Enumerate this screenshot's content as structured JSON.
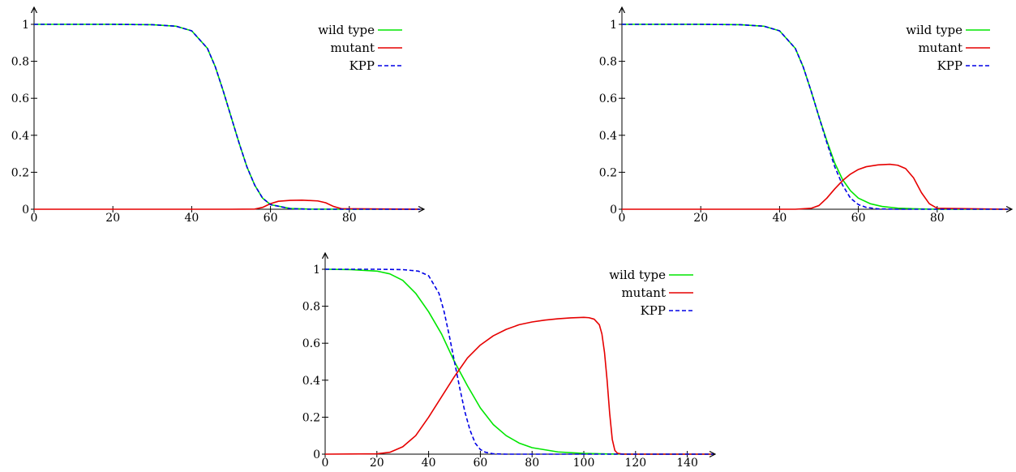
{
  "chart_data": [
    {
      "type": "line",
      "title": "",
      "xlabel": "",
      "ylabel": "",
      "xlim": [
        0,
        98
      ],
      "ylim": [
        0,
        1.03
      ],
      "x_ticks": [
        "0",
        "20",
        "40",
        "60",
        "80"
      ],
      "y_ticks": [
        "0",
        "0.2",
        "0.4",
        "0.6",
        "0.8",
        "1"
      ],
      "grid": false,
      "legend_position": "top-right",
      "series": [
        {
          "name": "wild type",
          "color": "#00e600",
          "dash": "solid",
          "x": [
            0,
            20,
            30,
            36,
            40,
            44,
            46,
            48,
            50,
            52,
            54,
            56,
            58,
            60,
            65,
            70,
            80,
            98
          ],
          "y": [
            1,
            1,
            0.998,
            0.99,
            0.965,
            0.87,
            0.77,
            0.64,
            0.5,
            0.36,
            0.23,
            0.13,
            0.06,
            0.025,
            0.004,
            0.001,
            0,
            0
          ]
        },
        {
          "name": "mutant",
          "color": "#e60000",
          "dash": "solid",
          "x": [
            0,
            50,
            56,
            58,
            60,
            62,
            65,
            68,
            72,
            74,
            76,
            78,
            98
          ],
          "y": [
            0,
            0,
            0.001,
            0.01,
            0.03,
            0.043,
            0.048,
            0.049,
            0.045,
            0.035,
            0.015,
            0.003,
            0
          ]
        },
        {
          "name": "KPP",
          "color": "#0000e6",
          "dash": "dashed",
          "x": [
            0,
            20,
            30,
            36,
            40,
            44,
            46,
            48,
            50,
            52,
            54,
            56,
            58,
            60,
            65,
            70,
            80,
            98
          ],
          "y": [
            1,
            1,
            0.998,
            0.99,
            0.965,
            0.87,
            0.77,
            0.64,
            0.5,
            0.36,
            0.23,
            0.13,
            0.06,
            0.025,
            0.003,
            0,
            0,
            0
          ]
        }
      ]
    },
    {
      "type": "line",
      "title": "",
      "xlabel": "",
      "ylabel": "",
      "xlim": [
        0,
        98
      ],
      "ylim": [
        0,
        1.03
      ],
      "x_ticks": [
        "0",
        "20",
        "40",
        "60",
        "80"
      ],
      "y_ticks": [
        "0",
        "0.2",
        "0.4",
        "0.6",
        "0.8",
        "1"
      ],
      "grid": false,
      "legend_position": "top-right",
      "series": [
        {
          "name": "wild type",
          "color": "#00e600",
          "dash": "solid",
          "x": [
            0,
            20,
            30,
            36,
            40,
            44,
            46,
            48,
            50,
            52,
            54,
            56,
            58,
            60,
            63,
            66,
            70,
            75,
            80,
            98
          ],
          "y": [
            1,
            1,
            0.998,
            0.99,
            0.965,
            0.87,
            0.77,
            0.64,
            0.5,
            0.37,
            0.25,
            0.16,
            0.1,
            0.06,
            0.03,
            0.015,
            0.006,
            0.002,
            0,
            0
          ]
        },
        {
          "name": "mutant",
          "color": "#e60000",
          "dash": "solid",
          "x": [
            0,
            44,
            48,
            50,
            52,
            54,
            56,
            58,
            60,
            62,
            65,
            68,
            70,
            72,
            74,
            76,
            78,
            80,
            98
          ],
          "y": [
            0,
            0,
            0.005,
            0.02,
            0.06,
            0.11,
            0.155,
            0.19,
            0.215,
            0.23,
            0.24,
            0.243,
            0.238,
            0.22,
            0.17,
            0.09,
            0.03,
            0.005,
            0
          ]
        },
        {
          "name": "KPP",
          "color": "#0000e6",
          "dash": "dashed",
          "x": [
            0,
            20,
            30,
            36,
            40,
            44,
            46,
            48,
            50,
            52,
            54,
            56,
            58,
            60,
            62,
            65,
            70,
            98
          ],
          "y": [
            1,
            1,
            0.998,
            0.99,
            0.965,
            0.87,
            0.77,
            0.64,
            0.5,
            0.36,
            0.23,
            0.13,
            0.06,
            0.025,
            0.01,
            0.002,
            0,
            0
          ]
        }
      ]
    },
    {
      "type": "line",
      "title": "",
      "xlabel": "",
      "ylabel": "",
      "xlim": [
        0,
        150
      ],
      "ylim": [
        0,
        1.03
      ],
      "x_ticks": [
        "0",
        "20",
        "40",
        "60",
        "80",
        "100",
        "120",
        "140"
      ],
      "y_ticks": [
        "0",
        "0.2",
        "0.4",
        "0.6",
        "0.8",
        "1"
      ],
      "grid": false,
      "legend_position": "top-right",
      "series": [
        {
          "name": "wild type",
          "color": "#00e600",
          "dash": "solid",
          "x": [
            0,
            10,
            20,
            25,
            30,
            35,
            40,
            45,
            50,
            55,
            60,
            65,
            70,
            75,
            80,
            90,
            100,
            110,
            120,
            150
          ],
          "y": [
            1,
            0.998,
            0.99,
            0.975,
            0.94,
            0.87,
            0.77,
            0.65,
            0.5,
            0.37,
            0.25,
            0.16,
            0.1,
            0.06,
            0.035,
            0.012,
            0.004,
            0.001,
            0,
            0
          ]
        },
        {
          "name": "mutant",
          "color": "#e60000",
          "dash": "solid",
          "x": [
            0,
            20,
            25,
            30,
            35,
            40,
            45,
            50,
            55,
            60,
            65,
            70,
            75,
            80,
            85,
            90,
            95,
            100,
            102,
            104,
            106,
            107,
            108,
            109,
            110,
            111,
            112,
            113,
            115,
            150
          ],
          "y": [
            0,
            0.002,
            0.01,
            0.04,
            0.1,
            0.2,
            0.31,
            0.42,
            0.52,
            0.59,
            0.64,
            0.675,
            0.7,
            0.715,
            0.725,
            0.732,
            0.737,
            0.74,
            0.738,
            0.73,
            0.7,
            0.65,
            0.55,
            0.4,
            0.22,
            0.08,
            0.02,
            0.005,
            0,
            0
          ]
        },
        {
          "name": "KPP",
          "color": "#0000e6",
          "dash": "dashed",
          "x": [
            0,
            20,
            30,
            36,
            40,
            44,
            46,
            48,
            50,
            52,
            54,
            56,
            58,
            60,
            62,
            65,
            70,
            150
          ],
          "y": [
            1,
            1,
            0.998,
            0.99,
            0.965,
            0.87,
            0.77,
            0.64,
            0.5,
            0.36,
            0.23,
            0.13,
            0.06,
            0.025,
            0.01,
            0.002,
            0,
            0
          ]
        }
      ]
    }
  ]
}
